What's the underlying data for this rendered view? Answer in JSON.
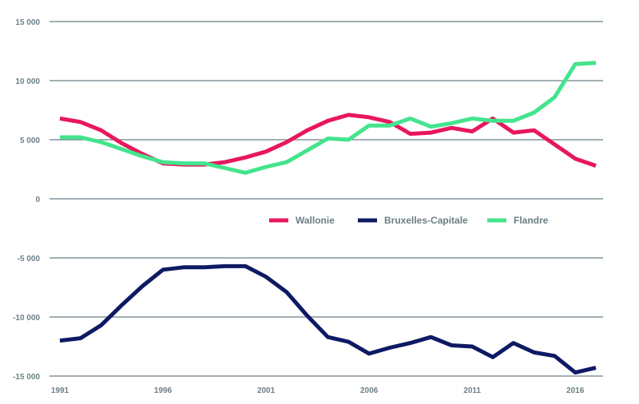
{
  "chart_data": {
    "type": "line",
    "title": "",
    "xlabel": "",
    "ylabel": "",
    "x": [
      1991,
      1992,
      1993,
      1994,
      1995,
      1996,
      1997,
      1998,
      1999,
      2000,
      2001,
      2002,
      2003,
      2004,
      2005,
      2006,
      2007,
      2008,
      2009,
      2010,
      2011,
      2012,
      2013,
      2014,
      2015,
      2016,
      2017
    ],
    "xticks": [
      1991,
      1996,
      2001,
      2006,
      2011,
      2016
    ],
    "xtick_labels": [
      "1991",
      "1996",
      "2001",
      "2006",
      "2011",
      "2016"
    ],
    "ylim": [
      -15000,
      15000
    ],
    "yticks": [
      15000,
      10000,
      5000,
      0,
      -5000,
      -10000,
      -15000
    ],
    "ytick_labels": [
      "15 000",
      "10 000",
      "5 000",
      "0",
      "-5 000",
      "-10 000",
      "-15 000"
    ],
    "grid": "horizontal",
    "legend_position": "center",
    "series": [
      {
        "name": "Wallonie",
        "color": "#e8175d",
        "values": [
          6800,
          6500,
          5800,
          4700,
          3800,
          3000,
          2900,
          2900,
          3100,
          3500,
          4000,
          4800,
          5800,
          6600,
          7100,
          6900,
          6500,
          5500,
          5600,
          6000,
          5700,
          6800,
          5600,
          5800,
          4600,
          3400,
          2800
        ]
      },
      {
        "name": "Bruxelles-Capitale",
        "color": "#0d1a63",
        "values": [
          -12000,
          -11800,
          -10700,
          -9000,
          -7400,
          -6000,
          -5800,
          -5800,
          -5700,
          -5700,
          -6600,
          -7900,
          -9900,
          -11700,
          -12100,
          -13100,
          -12600,
          -12200,
          -11700,
          -12400,
          -12500,
          -13400,
          -12200,
          -13000,
          -13300,
          -14700,
          -14300
        ]
      },
      {
        "name": "Flandre",
        "color": "#44e48c",
        "values": [
          5200,
          5200,
          4800,
          4200,
          3600,
          3100,
          3000,
          3000,
          2600,
          2200,
          2700,
          3100,
          4100,
          5100,
          5000,
          6200,
          6200,
          6800,
          6100,
          6400,
          6800,
          6600,
          6600,
          7300,
          8600,
          11400,
          11500
        ]
      }
    ]
  }
}
